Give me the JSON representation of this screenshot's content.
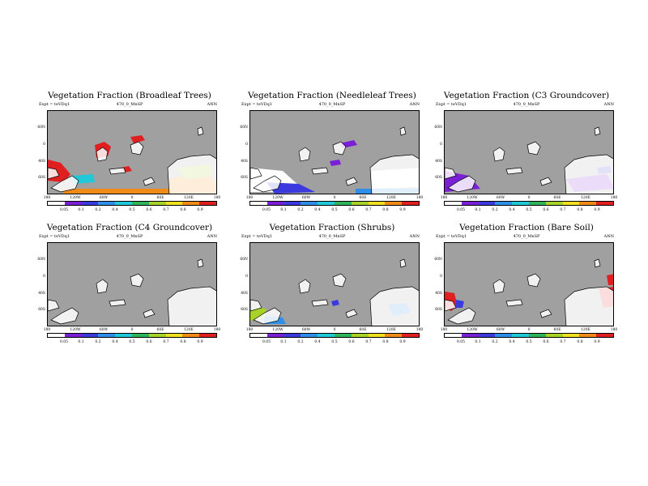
{
  "experiment_label": "Expt = teVDq1",
  "job_label": "470_0_MnSP",
  "season": "ANN",
  "lat_ticks": [
    "60N",
    "0",
    "40S",
    "60S"
  ],
  "lon_ticks": [
    "180",
    "120W",
    "60W",
    "0",
    "60E",
    "120E",
    "180"
  ],
  "colorbar_ticks": [
    "0.05",
    "0.1",
    "0.2",
    "0.4",
    "0.5",
    "0.6",
    "0.7",
    "0.8",
    "0.9"
  ],
  "colorbar_colors": [
    "#ffffff",
    "#7a1fd6",
    "#3a3adf",
    "#2f8fe8",
    "#20c8d8",
    "#2fb45a",
    "#a6d22a",
    "#f0e020",
    "#f08a18",
    "#e02020"
  ],
  "panels": [
    {
      "title": "Vegetation Fraction (Broadleaf Trees)"
    },
    {
      "title": "Vegetation Fraction (Needleleaf Trees)"
    },
    {
      "title": "Vegetation Fraction (C3 Groundcover)"
    },
    {
      "title": "Vegetation Fraction (C4 Groundcover)"
    },
    {
      "title": "Vegetation Fraction (Shrubs)"
    },
    {
      "title": "Vegetation Fraction (Bare Soil)"
    }
  ],
  "chart_data": [
    {
      "type": "heatmap",
      "title": "Vegetation Fraction (Broadleaf Trees)",
      "xlabel": "longitude",
      "ylabel": "latitude",
      "colorbar_levels": [
        0.05,
        0.1,
        0.2,
        0.4,
        0.5,
        0.6,
        0.7,
        0.8,
        0.9
      ],
      "dominant_value": 0.95
    },
    {
      "type": "heatmap",
      "title": "Vegetation Fraction (Needleleaf Trees)",
      "xlabel": "longitude",
      "ylabel": "latitude",
      "colorbar_levels": [
        0.05,
        0.1,
        0.2,
        0.4,
        0.5,
        0.6,
        0.7,
        0.8,
        0.9
      ],
      "dominant_value": 0.1
    },
    {
      "type": "heatmap",
      "title": "Vegetation Fraction (C3 Groundcover)",
      "xlabel": "longitude",
      "ylabel": "latitude",
      "colorbar_levels": [
        0.05,
        0.1,
        0.2,
        0.4,
        0.5,
        0.6,
        0.7,
        0.8,
        0.9
      ],
      "dominant_value": 0.1
    },
    {
      "type": "heatmap",
      "title": "Vegetation Fraction (C4 Groundcover)",
      "xlabel": "longitude",
      "ylabel": "latitude",
      "colorbar_levels": [
        0.05,
        0.1,
        0.2,
        0.4,
        0.5,
        0.6,
        0.7,
        0.8,
        0.9
      ],
      "dominant_value": 0.0
    },
    {
      "type": "heatmap",
      "title": "Vegetation Fraction (Shrubs)",
      "xlabel": "longitude",
      "ylabel": "latitude",
      "colorbar_levels": [
        0.05,
        0.1,
        0.2,
        0.4,
        0.5,
        0.6,
        0.7,
        0.8,
        0.9
      ],
      "dominant_value": 0.4
    },
    {
      "type": "heatmap",
      "title": "Vegetation Fraction (Bare Soil)",
      "xlabel": "longitude",
      "ylabel": "latitude",
      "colorbar_levels": [
        0.05,
        0.1,
        0.2,
        0.4,
        0.5,
        0.6,
        0.7,
        0.8,
        0.9
      ],
      "dominant_value": 0.95
    }
  ]
}
